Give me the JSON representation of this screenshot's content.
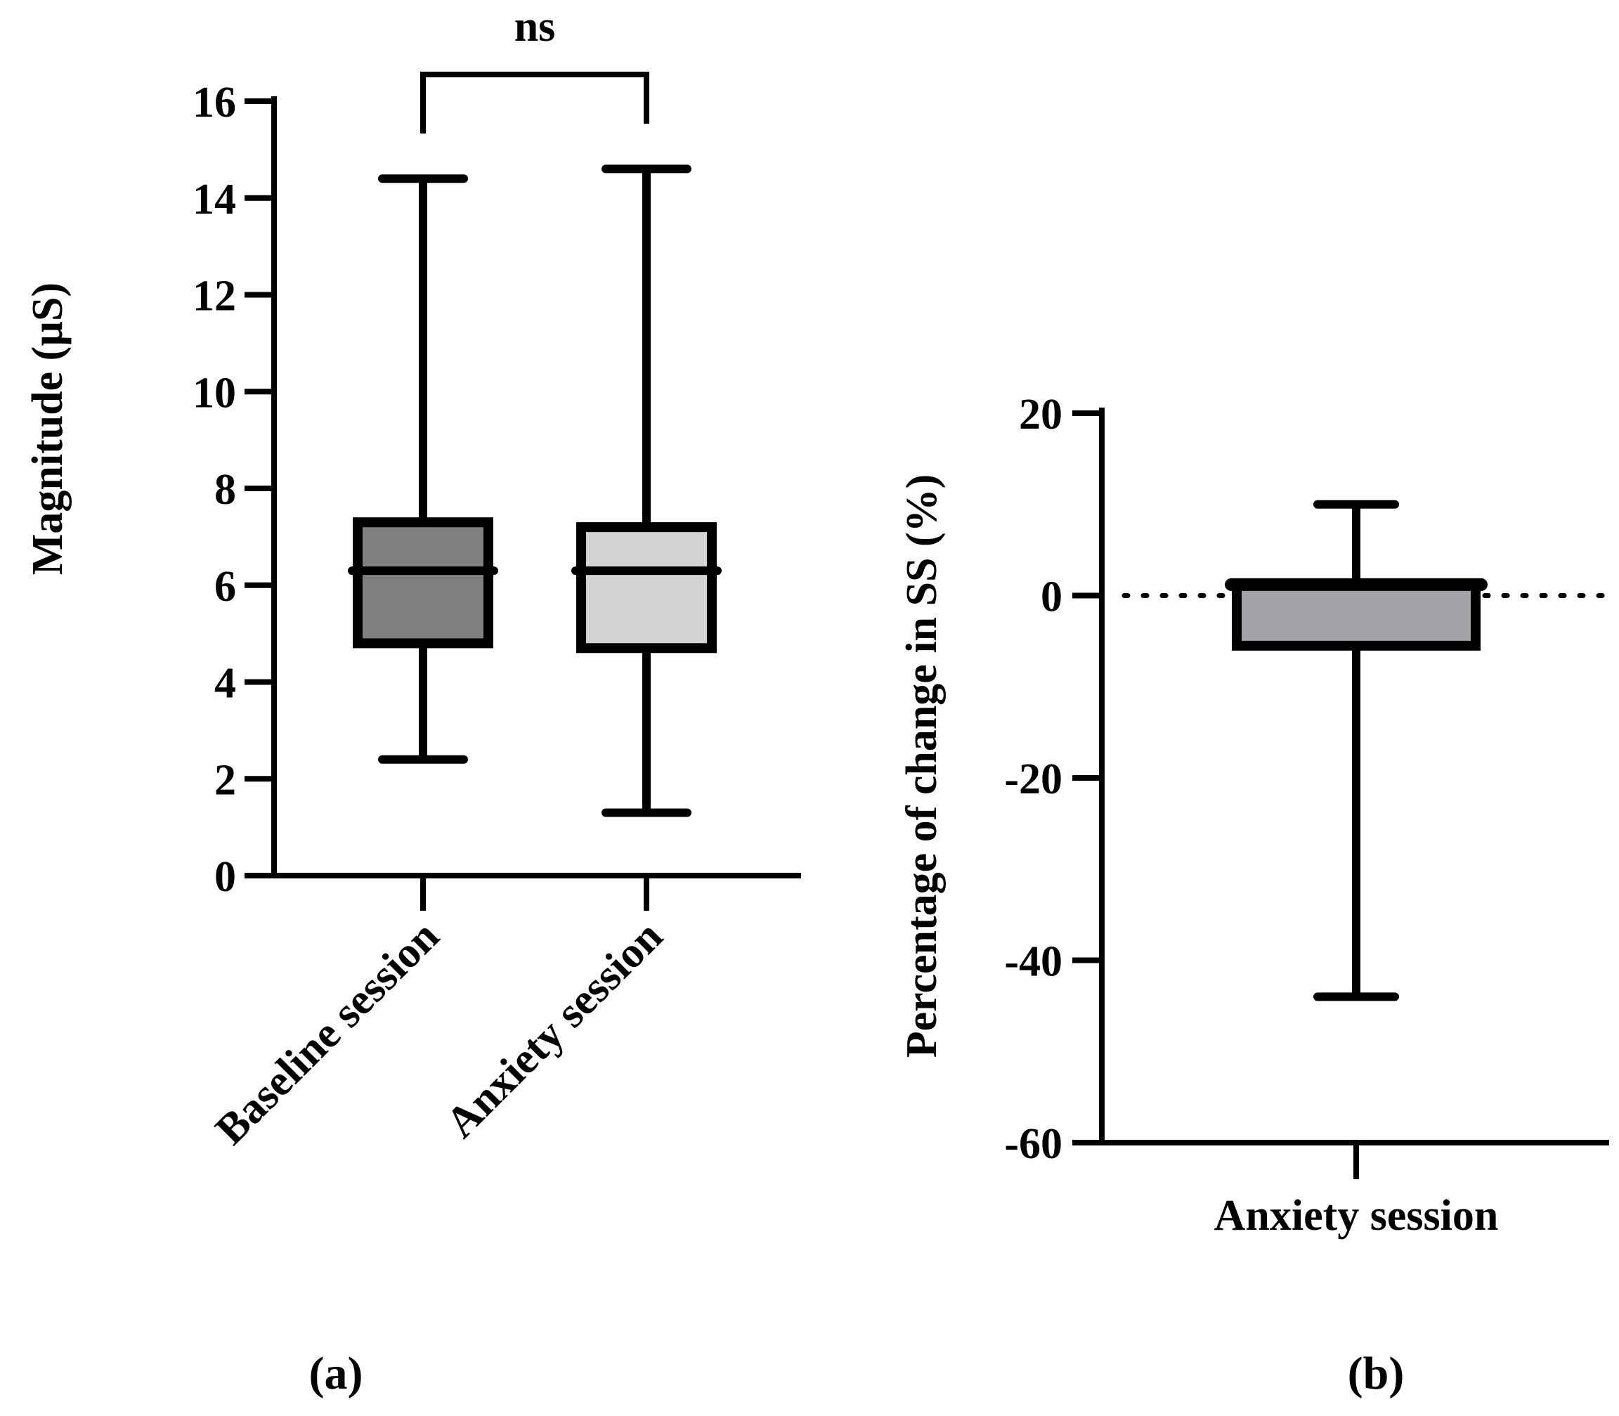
{
  "colors": {
    "ink": "#000000",
    "baseline_fill": "#808080",
    "anxiety_fill": "#d3d3d3",
    "change_fill": "#a3a3a8"
  },
  "chart_data": [
    {
      "panel": "(a)",
      "type": "box",
      "title": "",
      "xlabel": "",
      "ylabel": "Magnitude (µS)",
      "ylim": [
        0,
        16
      ],
      "yticks": [
        "0",
        "2",
        "4",
        "6",
        "8",
        "10",
        "12",
        "14",
        "16"
      ],
      "categories": [
        "Baseline session",
        "Anxiety session"
      ],
      "boxes": [
        {
          "name": "Baseline session",
          "min": 2.4,
          "q1": 4.8,
          "median": 6.3,
          "q3": 7.3,
          "max": 14.4
        },
        {
          "name": "Anxiety session",
          "min": 1.3,
          "q1": 4.7,
          "median": 6.3,
          "q3": 7.2,
          "max": 14.6
        }
      ],
      "significance": {
        "label": "ns",
        "between": [
          "Baseline session",
          "Anxiety session"
        ]
      }
    },
    {
      "panel": "(b)",
      "type": "box",
      "title": "",
      "xlabel": "",
      "ylabel": "Percentage of change in SS (%)",
      "ylim": [
        -60,
        20
      ],
      "yticks": [
        "20",
        "0",
        "-20",
        "-40",
        "-60"
      ],
      "ytick_values": [
        20,
        0,
        -20,
        -40,
        -60
      ],
      "categories": [
        "Anxiety session"
      ],
      "boxes": [
        {
          "name": "Anxiety session",
          "min": -44,
          "q1": -5.5,
          "median": 1.2,
          "q3": 1.2,
          "max": 10
        }
      ],
      "reference_line": {
        "y": 0,
        "style": "dotted"
      }
    }
  ]
}
